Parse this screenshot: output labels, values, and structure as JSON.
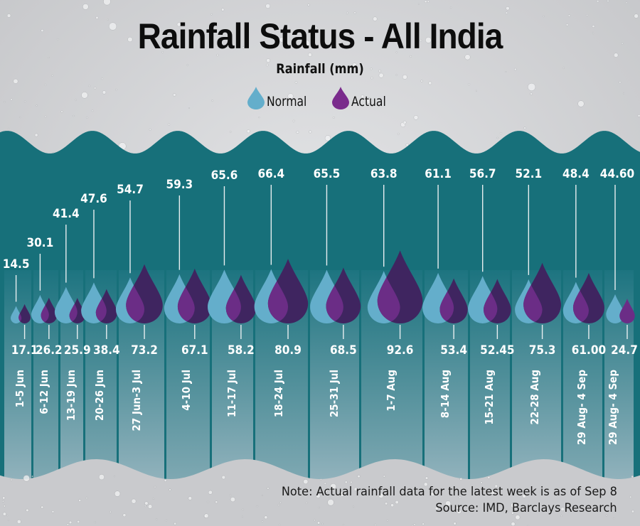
{
  "header": {
    "title": "Rainfall Status - All India",
    "subtitle": "Rainfall (mm)"
  },
  "legend": [
    {
      "label": "Normal",
      "color": "#64aecb",
      "icon": "raindrop-icon"
    },
    {
      "label": "Actual",
      "color": "#7a2b8c",
      "icon": "raindrop-icon"
    }
  ],
  "colors": {
    "teal_background": "#17707a",
    "normal_drop": "#64aecb",
    "actual_drop": "#3f2560",
    "actual_overlap": "#6b2d86",
    "label_text": "#ffffff"
  },
  "footer": {
    "note": "Note: Actual rainfall data for the latest week is as of Sep 8",
    "source": "Source: IMD, Barclays Research"
  },
  "chart_data": {
    "type": "bar",
    "title": "Rainfall Status - All India",
    "ylabel": "Rainfall (mm)",
    "xlabel": "",
    "categories": [
      "1-5 Jun",
      "6-12 Jun",
      "13-19 Jun",
      "20-26 Jun",
      "27 Jun-3 Jul",
      "4-10 Jul",
      "11-17 Jul",
      "18-24 Jul",
      "25-31 Jul",
      "1-7 Aug",
      "8-14 Aug",
      "15-21 Aug",
      "22-28 Aug",
      "29 Aug- 4 Sep"
    ],
    "series": [
      {
        "name": "Normal",
        "values": [
          14.5,
          30.1,
          41.4,
          47.6,
          54.7,
          59.3,
          65.6,
          66.4,
          65.5,
          63.8,
          61.1,
          56.7,
          52.1,
          48.4
        ],
        "labels": [
          "14.5",
          "30.1",
          "41.4",
          "47.6",
          "54.7",
          "59.3",
          "65.6",
          "66.4",
          "65.5",
          "63.8",
          "61.1",
          "56.7",
          "52.1",
          "48.4"
        ]
      },
      {
        "name": "Actual",
        "values": [
          17.1,
          26.2,
          25.9,
          38.4,
          73.2,
          67.1,
          58.2,
          80.9,
          68.5,
          92.6,
          53.4,
          52.45,
          75.3,
          61.0
        ],
        "labels": [
          "17.1",
          "26.2",
          "25.9",
          "38.4",
          "73.2",
          "67.1",
          "58.2",
          "80.9",
          "68.5",
          "92.6",
          "53.4",
          "52.45",
          "75.3",
          "61.00"
        ]
      }
    ],
    "extra_week": {
      "category": "29 Aug- 4 Sep",
      "normal_label": "44.60",
      "actual_label": "24.7",
      "normal": 44.6,
      "actual": 24.7
    },
    "legend_position": "top-center",
    "grid": false
  }
}
